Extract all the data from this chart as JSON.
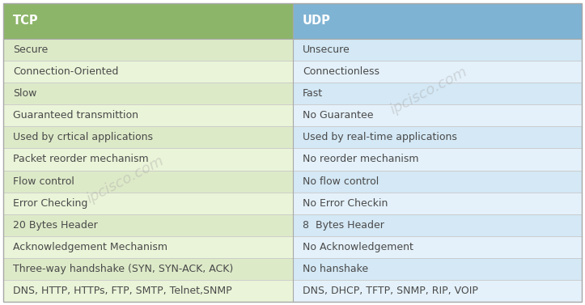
{
  "header": [
    "TCP",
    "UDP"
  ],
  "rows": [
    [
      "Secure",
      "Unsecure"
    ],
    [
      "Connection-Oriented",
      "Connectionless"
    ],
    [
      "Slow",
      "Fast"
    ],
    [
      "Guaranteed transmittion",
      "No Guarantee"
    ],
    [
      "Used by crtical applications",
      "Used by real-time applications"
    ],
    [
      "Packet reorder mechanism",
      "No reorder mechanism"
    ],
    [
      "Flow control",
      "No flow control"
    ],
    [
      "Error Checking",
      "No Error Checkin"
    ],
    [
      "20 Bytes Header",
      "8  Bytes Header"
    ],
    [
      "Acknowledgement Mechanism",
      "No Acknowledgement"
    ],
    [
      "Three-way handshake (SYN, SYN-ACK, ACK)",
      "No hanshake"
    ],
    [
      "DNS, HTTP, HTTPs, FTP, SMTP, Telnet,SNMP",
      "DNS, DHCP, TFTP, SNMP, RIP, VOIP"
    ]
  ],
  "header_bg_tcp": "#8db56a",
  "header_bg_udp": "#7fb3d3",
  "row_bg_tcp_even": "#ddeac8",
  "row_bg_tcp_odd": "#eaf4d8",
  "row_bg_udp_even": "#d4e8f5",
  "row_bg_udp_odd": "#e4f1fa",
  "header_text_color": "#ffffff",
  "row_text_color": "#4a4a4a",
  "border_color": "#a8a8a8",
  "divider_color": "#c8c8c8",
  "header_font_size": 10.5,
  "row_font_size": 9,
  "watermark_text": "ipcisco.com",
  "watermark_color": "#a0a0a0",
  "watermark_alpha": 0.35,
  "fig_width": 7.23,
  "fig_height": 3.77,
  "dpi": 100
}
